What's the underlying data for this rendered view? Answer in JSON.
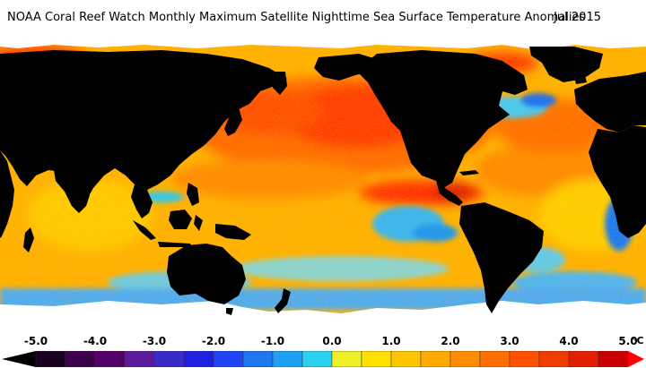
{
  "title": {
    "text": "NOAA Coral Reef Watch Monthly Maximum Satellite Nighttime Sea Surface Temperature Anomalies",
    "date": "Jul 2015"
  },
  "legend": {
    "ticks": [
      "-5.0",
      "-4.0",
      "-3.0",
      "-2.0",
      "-1.0",
      "0.0",
      "1.0",
      "2.0",
      "3.0",
      "4.0",
      "5.0"
    ],
    "unit": "°C",
    "bins": [
      {
        "min": -5.0,
        "max": -4.5,
        "color": "#1a0020"
      },
      {
        "min": -4.5,
        "max": -4.0,
        "color": "#3d004a"
      },
      {
        "min": -4.0,
        "max": -3.5,
        "color": "#55006a"
      },
      {
        "min": -3.5,
        "max": -3.0,
        "color": "#5a1a9a"
      },
      {
        "min": -3.0,
        "max": -2.5,
        "color": "#3a2ac8"
      },
      {
        "min": -2.5,
        "max": -2.0,
        "color": "#1f1fe0"
      },
      {
        "min": -2.0,
        "max": -1.5,
        "color": "#1e46f5"
      },
      {
        "min": -1.5,
        "max": -1.0,
        "color": "#1e78f0"
      },
      {
        "min": -1.0,
        "max": -0.5,
        "color": "#1ea0f0"
      },
      {
        "min": -0.5,
        "max": 0.0,
        "color": "#2ad2f0"
      },
      {
        "min": 0.0,
        "max": 0.5,
        "color": "#f0f028"
      },
      {
        "min": 0.5,
        "max": 1.0,
        "color": "#ffe000"
      },
      {
        "min": 1.0,
        "max": 1.5,
        "color": "#ffc400"
      },
      {
        "min": 1.5,
        "max": 2.0,
        "color": "#ffaa00"
      },
      {
        "min": 2.0,
        "max": 2.5,
        "color": "#ff8c00"
      },
      {
        "min": 2.5,
        "max": 3.0,
        "color": "#ff6e00"
      },
      {
        "min": 3.0,
        "max": 3.5,
        "color": "#ff5000"
      },
      {
        "min": 3.5,
        "max": 4.0,
        "color": "#f03c00"
      },
      {
        "min": 4.0,
        "max": 4.5,
        "color": "#e02000"
      },
      {
        "min": 4.5,
        "max": 5.0,
        "color": "#c80000"
      }
    ],
    "under_color": "#000000",
    "over_color": "#ff0000"
  },
  "map": {
    "projection": "equirectangular",
    "land_color": "#000000",
    "ice_color": "#ffffff",
    "ocean_base_color": "#ffb400"
  }
}
